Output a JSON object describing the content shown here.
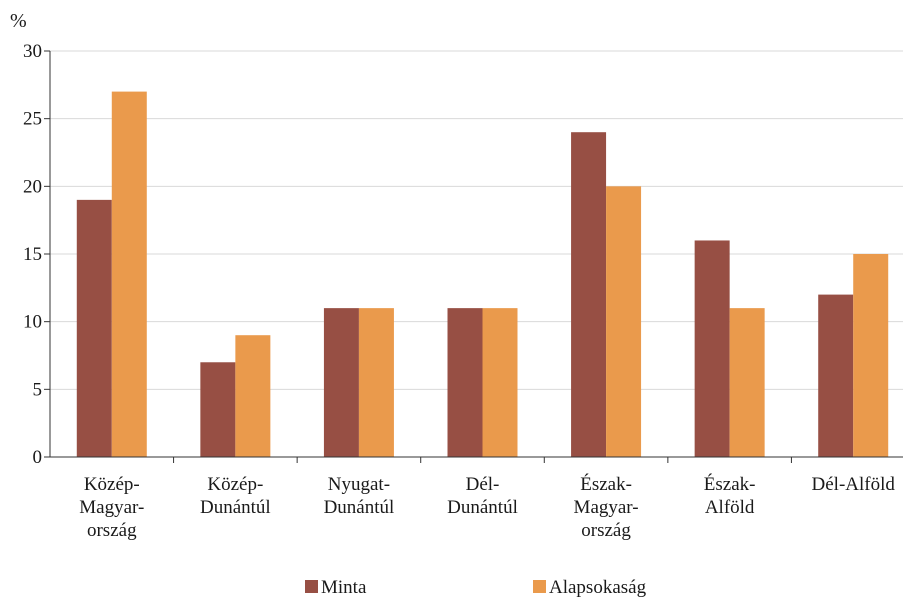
{
  "chart_data": {
    "type": "bar",
    "y_unit": "%",
    "categories": [
      [
        "Közép-",
        "Magyar-",
        "ország"
      ],
      [
        "Közép-",
        "Dunántúl"
      ],
      [
        "Nyugat-",
        "Dunántúl"
      ],
      [
        "Dél-",
        "Dunántúl"
      ],
      [
        "Észak-",
        "Magyar-",
        "ország"
      ],
      [
        "Észak-",
        "Alföld"
      ],
      [
        "Dél-Alföld"
      ]
    ],
    "series": [
      {
        "name": "Minta",
        "color": "#974f44",
        "values": [
          19,
          7,
          11,
          11,
          24,
          16,
          12
        ]
      },
      {
        "name": "Alapsokaság",
        "color": "#ea9a4c",
        "values": [
          27,
          9,
          11,
          11,
          20,
          11,
          15
        ]
      }
    ],
    "ylim": [
      0,
      30
    ],
    "yticks": [
      0,
      5,
      10,
      15,
      20,
      25,
      30
    ],
    "grid": true,
    "legend_position": "bottom"
  }
}
